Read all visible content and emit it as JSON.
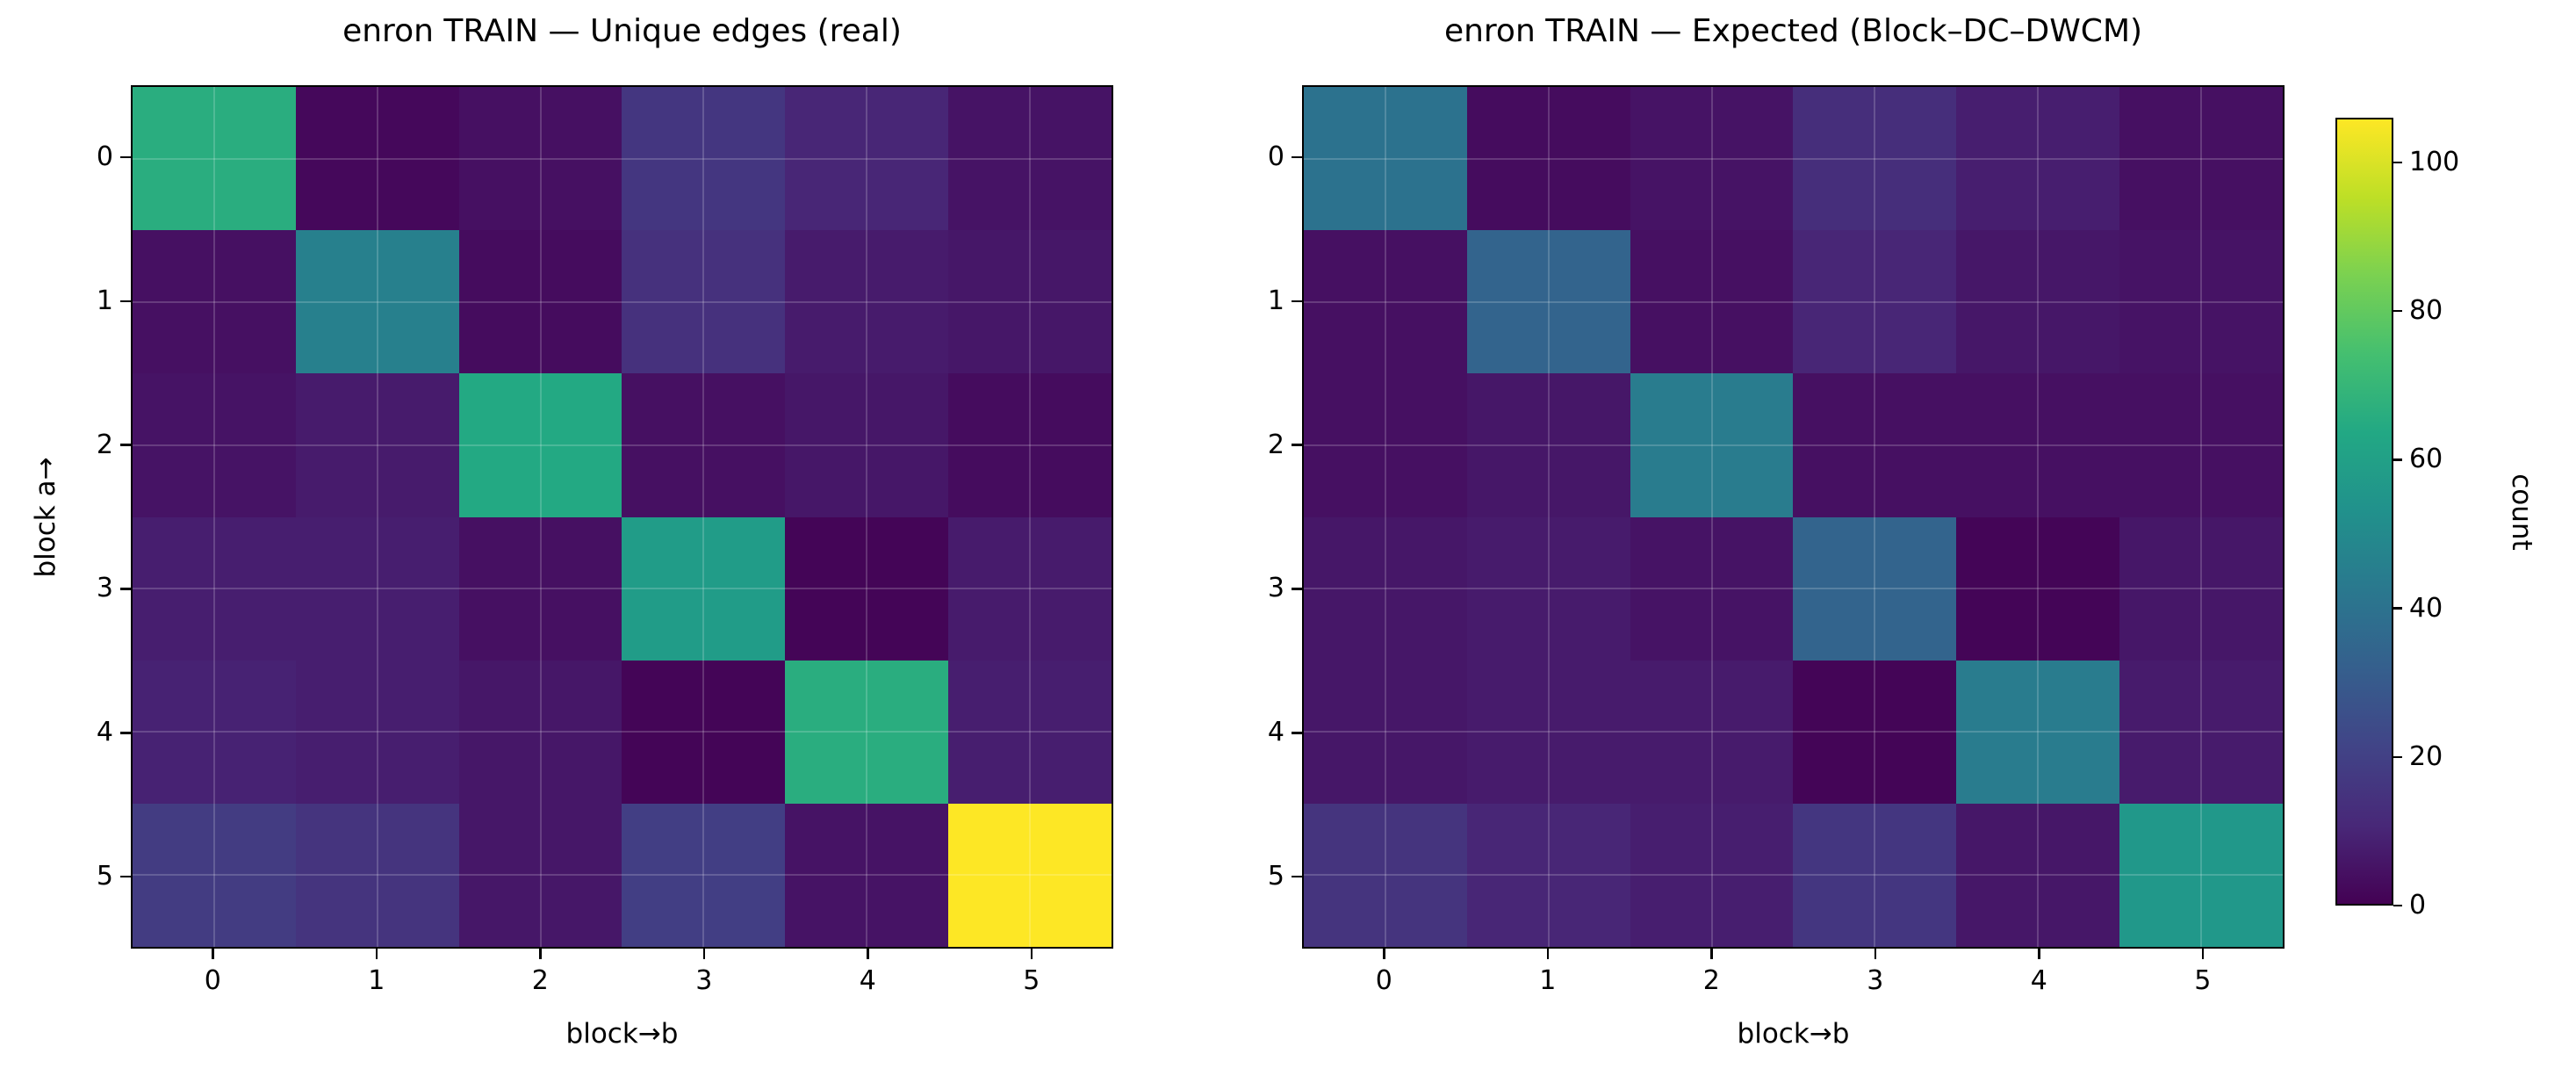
{
  "figure": {
    "background": "#ffffff"
  },
  "colors": {
    "text": "#000000",
    "frame": "#000000",
    "grid_line": "rgba(255,255,255,0.18)",
    "viridis_stops": [
      [
        0.0,
        "#440154"
      ],
      [
        0.1,
        "#482878"
      ],
      [
        0.2,
        "#414487"
      ],
      [
        0.3,
        "#355f8d"
      ],
      [
        0.4,
        "#2a788e"
      ],
      [
        0.5,
        "#21918c"
      ],
      [
        0.6,
        "#22a884"
      ],
      [
        0.7,
        "#44bf70"
      ],
      [
        0.8,
        "#7ad151"
      ],
      [
        0.9,
        "#bddf26"
      ],
      [
        1.0,
        "#fde725"
      ]
    ]
  },
  "colorbar": {
    "label": "count",
    "ticks": [
      0,
      20,
      40,
      60,
      80,
      100
    ],
    "vmin": 0,
    "vmax": 106,
    "top_color": "#fde725",
    "bottom_color": "#440154"
  },
  "chart_data": [
    {
      "type": "heatmap",
      "title": "enron TRAIN — Unique edges (real)",
      "xlabel": "block→b",
      "ylabel": "block a→",
      "x_ticks": [
        "0",
        "1",
        "2",
        "3",
        "4",
        "5"
      ],
      "y_ticks": [
        "0",
        "1",
        "2",
        "3",
        "4",
        "5"
      ],
      "colormap": "viridis",
      "vmin": 0,
      "vmax": 106,
      "grid": true,
      "values": [
        [
          66,
          2,
          4,
          16,
          10,
          5
        ],
        [
          4,
          46,
          3,
          14,
          7,
          6
        ],
        [
          5,
          7,
          64,
          4,
          6,
          3
        ],
        [
          8,
          8,
          4,
          58,
          1,
          7
        ],
        [
          9,
          8,
          6,
          1,
          66,
          8
        ],
        [
          18,
          15,
          6,
          19,
          5,
          106
        ]
      ]
    },
    {
      "type": "heatmap",
      "title": "enron TRAIN — Expected (Block–DC–DWCM)",
      "xlabel": "block→b",
      "ylabel": "",
      "x_ticks": [
        "0",
        "1",
        "2",
        "3",
        "4",
        "5"
      ],
      "y_ticks": [
        "0",
        "1",
        "2",
        "3",
        "4",
        "5"
      ],
      "colormap": "viridis",
      "vmin": 0,
      "vmax": 106,
      "grid": true,
      "values": [
        [
          40,
          3,
          5,
          13,
          8,
          4
        ],
        [
          4,
          34,
          4,
          10,
          6,
          5
        ],
        [
          4,
          6,
          44,
          4,
          4,
          4
        ],
        [
          6,
          7,
          5,
          34,
          1,
          6
        ],
        [
          6,
          7,
          7,
          1,
          44,
          7
        ],
        [
          15,
          10,
          8,
          16,
          6,
          56
        ]
      ]
    }
  ]
}
